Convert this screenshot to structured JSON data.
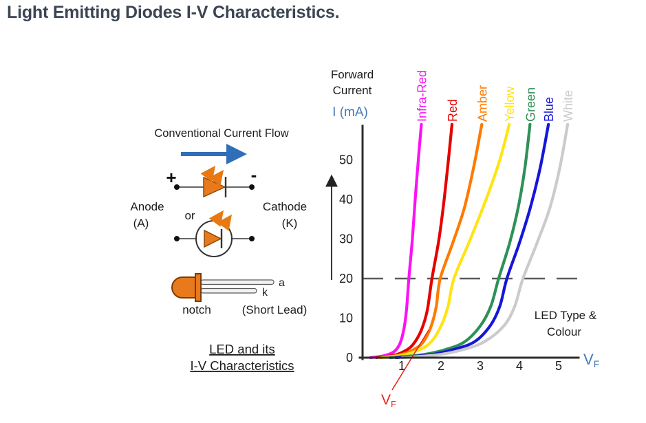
{
  "page": {
    "title": "Light Emitting Diodes I-V Characteristics."
  },
  "diagram": {
    "flow_label": "Conventional Current Flow",
    "plus_sign": "+",
    "minus_sign": "-",
    "anode_label": "Anode",
    "anode_sub": "(A)",
    "or_label": "or",
    "cathode_label": "Cathode",
    "cathode_sub": "(K)",
    "lead_a_label": "a",
    "lead_k_label": "k",
    "notch_label": "notch",
    "short_lead_label": "(Short Lead)",
    "caption_line1": "LED and its",
    "caption_line2": "I-V Characteristics",
    "colors": {
      "flow_arrow_blue": "#2f6fba",
      "led_orange": "#e8791c"
    }
  },
  "chart": {
    "y_axis_title_line1": "Forward",
    "y_axis_title_line2": "Current",
    "y_axis_unit": "I (mA)",
    "x_axis_label_main": "V",
    "x_axis_label_sub": "F",
    "vf_pointer_main": "V",
    "vf_pointer_sub": "F",
    "legend_note_line1": "LED Type &",
    "legend_note_line2": "Colour",
    "colors": {
      "axis_label_blue": "#4677b8",
      "annotation_red": "#e8251f",
      "dashed_gray": "#5b5b5b"
    }
  },
  "chart_data": {
    "type": "line",
    "title": "",
    "xlabel": "VF",
    "ylabel": "I (mA)",
    "y_axis_title": "Forward Current",
    "xlim": [
      0,
      5.6
    ],
    "ylim": [
      0,
      59
    ],
    "x_ticks": [
      1,
      2,
      3,
      4,
      5
    ],
    "y_ticks": [
      0,
      10,
      20,
      30,
      40,
      50
    ],
    "grid": false,
    "guide_current_ma": 20,
    "annotations": [
      "LED Type & Colour",
      "VF"
    ],
    "legend_position": "rotated labels above each curve",
    "series": [
      {
        "name": "Infra-Red",
        "color": "#fb12f5",
        "vf_at_20ma": 1.2,
        "points": [
          [
            0.2,
            0
          ],
          [
            0.55,
            0.5
          ],
          [
            0.8,
            1.5
          ],
          [
            0.95,
            3.5
          ],
          [
            1.05,
            7
          ],
          [
            1.12,
            12
          ],
          [
            1.18,
            20
          ],
          [
            1.27,
            30
          ],
          [
            1.35,
            41
          ],
          [
            1.43,
            51
          ],
          [
            1.5,
            59
          ]
        ]
      },
      {
        "name": "Red",
        "color": "#e60000",
        "vf_at_20ma": 1.8,
        "points": [
          [
            0.35,
            0
          ],
          [
            0.8,
            0.6
          ],
          [
            1.1,
            1.8
          ],
          [
            1.3,
            3.5
          ],
          [
            1.5,
            7
          ],
          [
            1.65,
            12
          ],
          [
            1.77,
            20
          ],
          [
            1.95,
            30
          ],
          [
            2.08,
            40
          ],
          [
            2.19,
            50
          ],
          [
            2.28,
            59
          ]
        ]
      },
      {
        "name": "Amber",
        "color": "#ff7a00",
        "vf_at_20ma": 2.0,
        "points": [
          [
            0.45,
            0
          ],
          [
            0.95,
            0.7
          ],
          [
            1.3,
            2
          ],
          [
            1.55,
            4
          ],
          [
            1.75,
            8
          ],
          [
            1.88,
            13
          ],
          [
            1.98,
            20
          ],
          [
            2.3,
            29
          ],
          [
            2.6,
            38
          ],
          [
            2.85,
            49
          ],
          [
            3.04,
            59
          ]
        ]
      },
      {
        "name": "Yellow",
        "color": "#ffe413",
        "vf_at_20ma": 2.3,
        "points": [
          [
            0.5,
            0
          ],
          [
            1.05,
            0.7
          ],
          [
            1.45,
            2
          ],
          [
            1.75,
            4
          ],
          [
            2.0,
            8
          ],
          [
            2.18,
            13
          ],
          [
            2.33,
            20
          ],
          [
            2.75,
            30
          ],
          [
            3.15,
            40
          ],
          [
            3.5,
            50
          ],
          [
            3.74,
            59
          ]
        ]
      },
      {
        "name": "Green",
        "color": "#2f9058",
        "vf_at_20ma": 3.5,
        "points": [
          [
            0.7,
            0
          ],
          [
            1.5,
            0.7
          ],
          [
            2.1,
            2
          ],
          [
            2.6,
            4
          ],
          [
            3.0,
            8
          ],
          [
            3.27,
            13
          ],
          [
            3.47,
            20
          ],
          [
            3.75,
            29
          ],
          [
            3.97,
            38
          ],
          [
            4.14,
            48
          ],
          [
            4.27,
            59
          ]
        ]
      },
      {
        "name": "Blue",
        "color": "#1616d9",
        "vf_at_20ma": 3.7,
        "points": [
          [
            0.85,
            0
          ],
          [
            1.7,
            0.7
          ],
          [
            2.3,
            2
          ],
          [
            2.85,
            4
          ],
          [
            3.25,
            8
          ],
          [
            3.5,
            13
          ],
          [
            3.68,
            20
          ],
          [
            4.0,
            29
          ],
          [
            4.28,
            38
          ],
          [
            4.53,
            48
          ],
          [
            4.74,
            59
          ]
        ]
      },
      {
        "name": "White",
        "color": "#cbcbcb",
        "vf_at_20ma": 4.1,
        "points": [
          [
            1.0,
            0
          ],
          [
            1.9,
            0.7
          ],
          [
            2.55,
            2
          ],
          [
            3.1,
            4
          ],
          [
            3.6,
            8
          ],
          [
            3.88,
            13
          ],
          [
            4.09,
            20
          ],
          [
            4.45,
            29
          ],
          [
            4.78,
            38
          ],
          [
            5.03,
            48
          ],
          [
            5.23,
            59
          ]
        ]
      }
    ]
  }
}
